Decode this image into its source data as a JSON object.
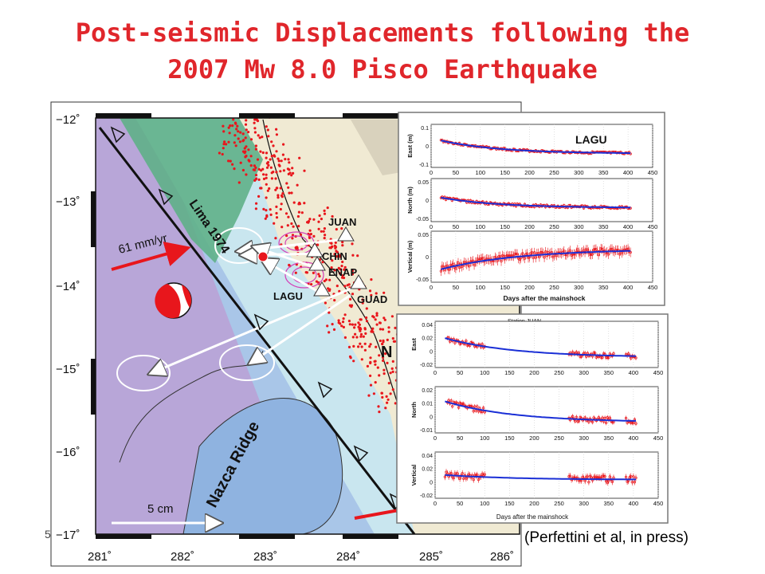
{
  "slide": {
    "title_line1": "Post-seismic Displacements following the",
    "title_line2": "2007 Mw 8.0 Pisco Earthquake",
    "citation": "(Perfettini et al, in press)",
    "slide_number": "5"
  },
  "map": {
    "lat_ticks": [
      "−12˚",
      "−13˚",
      "−14˚",
      "−15˚",
      "−16˚",
      "−17˚"
    ],
    "lon_ticks": [
      "281˚",
      "282˚",
      "283˚",
      "284˚",
      "285˚",
      "286˚"
    ],
    "labels": {
      "lima": "Lima 1974",
      "rate": "61 mm/yr",
      "ridge": "Nazca Ridge",
      "scale": "5 cm",
      "partial": "N"
    },
    "stations": [
      "JUAN",
      "CHIN",
      "ENAP",
      "LAGU",
      "GUAD"
    ],
    "colors": {
      "ocean": "#a9c6e8",
      "deep": "#b8a6d8",
      "coast": "#c9e6ef",
      "land": "#f0ead3",
      "lima": "#5fb088",
      "quake": "#e8161c",
      "arrow": "#ffffff",
      "trench": "#111111"
    }
  },
  "inset_lagu": {
    "title": "LAGU",
    "ylabels": [
      "East (m)",
      "North (m)",
      "Vertical (m)"
    ],
    "yticks": [
      [
        "0.1",
        "0",
        "-0.1"
      ],
      [
        "0.05",
        "0",
        "-0.05"
      ],
      [
        "0.05",
        "0",
        "-0.05"
      ]
    ],
    "xticks": [
      "0",
      "50",
      "100",
      "150",
      "200",
      "250",
      "300",
      "350",
      "400",
      "450"
    ],
    "xlabel": "Days after the mainshock",
    "xlim": [
      0,
      450
    ]
  },
  "inset_juan": {
    "title": "Station JUAN",
    "ylabels": [
      "East",
      "North",
      "Vertical"
    ],
    "yticks": [
      [
        "0.04",
        "0.02",
        "0",
        "-0.02"
      ],
      [
        "0.02",
        "0.01",
        "0",
        "-0.01"
      ],
      [
        "0.04",
        "0.02",
        "0",
        "-0.02"
      ]
    ],
    "xticks": [
      "0",
      "50",
      "100",
      "150",
      "200",
      "250",
      "300",
      "350",
      "400",
      "450"
    ],
    "xlabel": "Days after the mainshock",
    "xlim": [
      0,
      450
    ]
  }
}
